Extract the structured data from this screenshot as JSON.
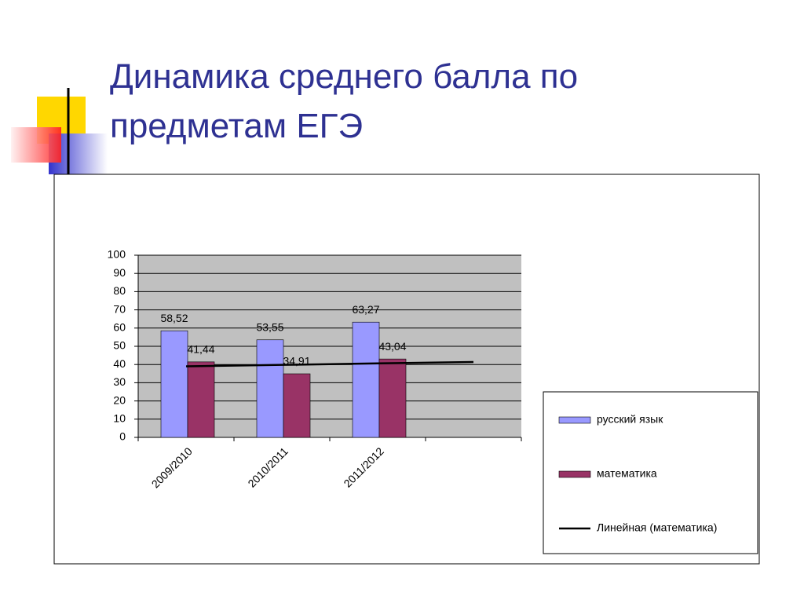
{
  "slide_title": [
    "Динамика среднего балла по",
    "предметам ЕГЭ"
  ],
  "chart_data": {
    "type": "bar",
    "categories": [
      "2009/2010",
      "2010/2011",
      "2011/2012",
      null
    ],
    "series": [
      {
        "name": "русский язык",
        "color": "#9999ff",
        "values": [
          58.52,
          53.55,
          63.27,
          null
        ],
        "value_labels": [
          "58,52",
          "53,55",
          "63,27",
          null
        ]
      },
      {
        "name": "математика",
        "color": "#993366",
        "values": [
          41.44,
          34.91,
          43.04,
          null
        ],
        "value_labels": [
          "41,44",
          "34,91",
          "43,04",
          null
        ]
      },
      {
        "name": "Линейная (математика)",
        "type": "line",
        "color": "#000000",
        "values": [
          39.0,
          39.8,
          40.6,
          41.4
        ]
      }
    ],
    "ylim": [
      0,
      100
    ],
    "yticks": [
      0,
      10,
      20,
      30,
      40,
      50,
      60,
      70,
      80,
      90,
      100
    ],
    "grid": true,
    "legend": "right"
  }
}
